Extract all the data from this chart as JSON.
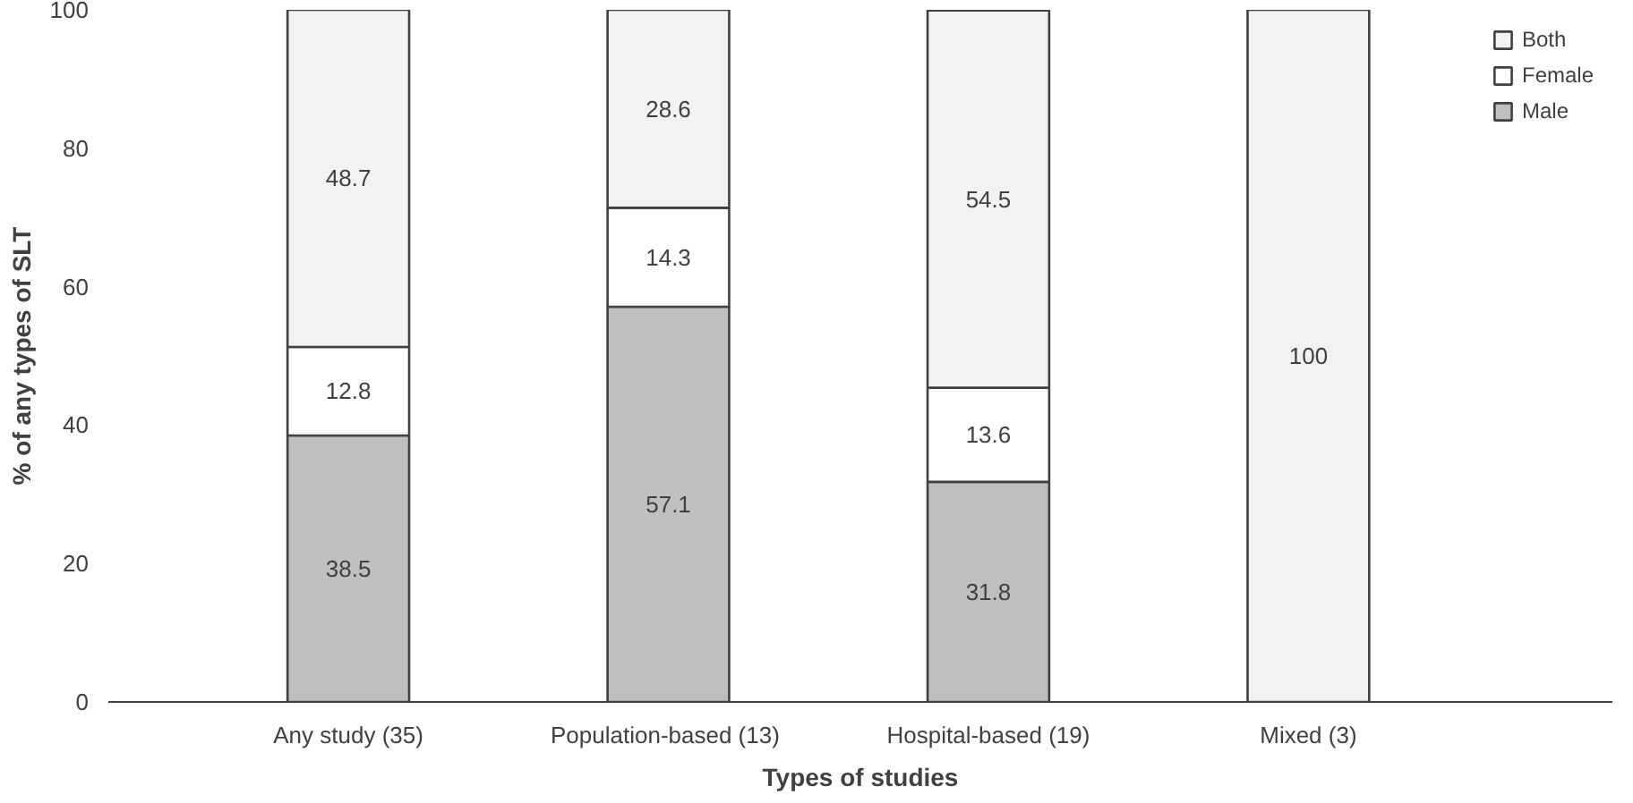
{
  "chart_data": {
    "type": "bar",
    "stacked": true,
    "xlabel": "Types of studies",
    "ylabel": "% of any types of SLT",
    "categories": [
      "Any study (35)",
      "Population-based  (13)",
      "Hospital-based (19)",
      "Mixed (3)"
    ],
    "series": [
      {
        "name": "Male",
        "color": "#bfbfbf",
        "values": [
          38.5,
          57.1,
          31.8,
          0
        ],
        "value_labels": [
          "38.5",
          "57.1",
          "31.8",
          null
        ]
      },
      {
        "name": "Female",
        "color": "#ffffff",
        "values": [
          12.8,
          14.3,
          13.6,
          0
        ],
        "value_labels": [
          "12.8",
          "14.3",
          "13.6",
          null
        ]
      },
      {
        "name": "Both",
        "color": "#f2f2f2",
        "values": [
          48.7,
          28.6,
          54.5,
          100
        ],
        "value_labels": [
          "48.7",
          "28.6",
          "54.5",
          "100"
        ]
      }
    ],
    "ylim": [
      0,
      100
    ],
    "yticks": [
      0,
      20,
      40,
      60,
      80,
      100
    ],
    "legend": "right"
  }
}
